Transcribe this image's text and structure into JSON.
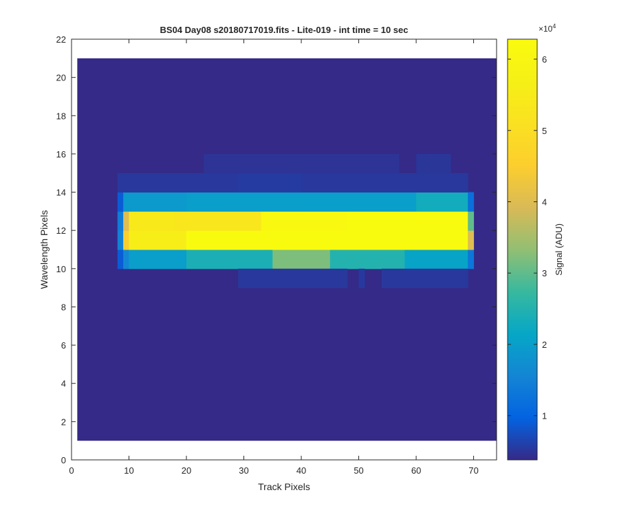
{
  "chart_data": {
    "type": "heatmap",
    "title": "BS04 Day08  s20180717019.fits - Lite-019 - int time = 10 sec",
    "xlabel": "Track Pixels",
    "ylabel": "Wavelength Pixels",
    "xlim": [
      0,
      74
    ],
    "ylim": [
      0,
      22
    ],
    "xticks": [
      0,
      10,
      20,
      30,
      40,
      50,
      60,
      70
    ],
    "yticks": [
      0,
      2,
      4,
      6,
      8,
      10,
      12,
      14,
      16,
      18,
      20,
      22
    ],
    "image_extent": {
      "x": [
        1,
        74
      ],
      "y": [
        1,
        21
      ]
    },
    "background_value": 3800,
    "grid": false,
    "colormap": "parula",
    "colorbar": {
      "label": "Signal (ADU)",
      "exponent_label": "×10",
      "exponent": "4",
      "clim": [
        3800,
        62800
      ],
      "ticks": [
        1,
        2,
        3,
        4,
        5,
        6
      ],
      "tick_values": [
        10000,
        20000,
        30000,
        40000,
        50000,
        60000
      ]
    },
    "rows": [
      {
        "name": "row 10-11",
        "y": [
          10,
          11
        ],
        "segments": [
          {
            "x": [
              8,
              9
            ],
            "value": 9000
          },
          {
            "x": [
              9,
              10
            ],
            "value": 16000
          },
          {
            "x": [
              10,
              20
            ],
            "value": 20000
          },
          {
            "x": [
              20,
              35
            ],
            "value": 24000
          },
          {
            "x": [
              35,
              45
            ],
            "value": 32000
          },
          {
            "x": [
              45,
              58
            ],
            "value": 25000
          },
          {
            "x": [
              58,
              69
            ],
            "value": 21000
          },
          {
            "x": [
              69,
              70
            ],
            "value": 13000
          }
        ]
      },
      {
        "name": "row 11-12",
        "y": [
          11,
          12
        ],
        "segments": [
          {
            "x": [
              8,
              9
            ],
            "value": 15000
          },
          {
            "x": [
              9,
              10
            ],
            "value": 45000
          },
          {
            "x": [
              10,
              20
            ],
            "value": 56000
          },
          {
            "x": [
              20,
              69
            ],
            "value": 62800
          },
          {
            "x": [
              69,
              70
            ],
            "value": 40000
          }
        ]
      },
      {
        "name": "row 12-13",
        "y": [
          12,
          13
        ],
        "segments": [
          {
            "x": [
              8,
              9
            ],
            "value": 14000
          },
          {
            "x": [
              9,
              10
            ],
            "value": 40000
          },
          {
            "x": [
              10,
              18
            ],
            "value": 54000
          },
          {
            "x": [
              18,
              33
            ],
            "value": 53000
          },
          {
            "x": [
              33,
              48
            ],
            "value": 61000
          },
          {
            "x": [
              48,
              69
            ],
            "value": 62800
          },
          {
            "x": [
              69,
              70
            ],
            "value": 30000
          }
        ]
      },
      {
        "name": "row 13-14",
        "y": [
          13,
          14
        ],
        "segments": [
          {
            "x": [
              8,
              9
            ],
            "value": 9000
          },
          {
            "x": [
              9,
              20
            ],
            "value": 19000
          },
          {
            "x": [
              20,
              40
            ],
            "value": 20000
          },
          {
            "x": [
              40,
              60
            ],
            "value": 20000
          },
          {
            "x": [
              60,
              69
            ],
            "value": 23000
          },
          {
            "x": [
              69,
              70
            ],
            "value": 12000
          }
        ]
      },
      {
        "name": "row 9-10",
        "y": [
          9,
          10
        ],
        "segments": [
          {
            "x": [
              29,
              48
            ],
            "value": 5200
          },
          {
            "x": [
              50,
              51
            ],
            "value": 5400
          },
          {
            "x": [
              54,
              69
            ],
            "value": 5200
          }
        ]
      },
      {
        "name": "row 14-15",
        "y": [
          14,
          15
        ],
        "segments": [
          {
            "x": [
              8,
              29
            ],
            "value": 5200
          },
          {
            "x": [
              29,
              40
            ],
            "value": 5600
          },
          {
            "x": [
              40,
              69
            ],
            "value": 5200
          }
        ]
      },
      {
        "name": "row 15-16",
        "y": [
          15,
          16
        ],
        "segments": [
          {
            "x": [
              23,
              57
            ],
            "value": 4800
          },
          {
            "x": [
              60,
              66
            ],
            "value": 5000
          }
        ]
      }
    ]
  }
}
